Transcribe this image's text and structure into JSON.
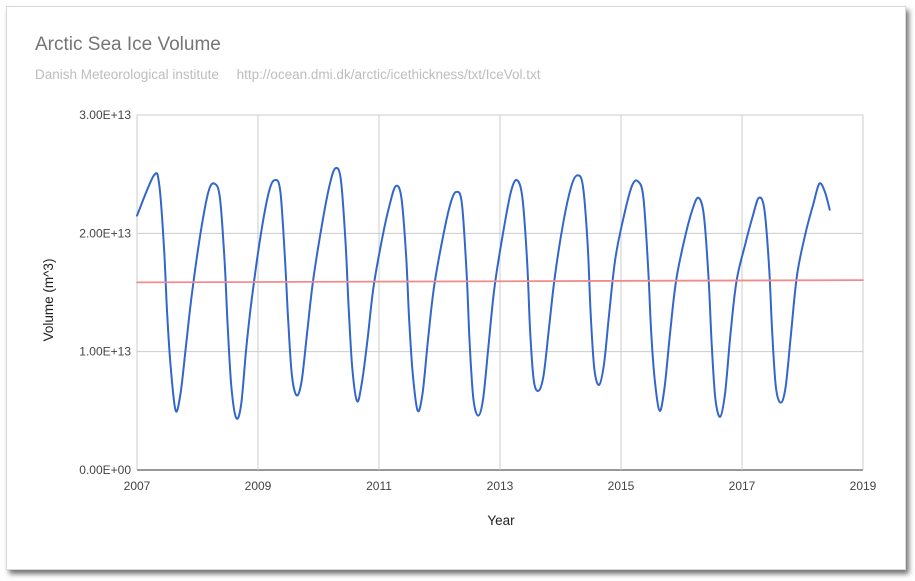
{
  "header": {
    "title": "Arctic Sea Ice Volume",
    "source": "Danish Meteorological institute",
    "url": "http://ocean.dmi.dk/arctic/icethickness/txt/IceVol.txt"
  },
  "chart_data": {
    "type": "line",
    "title": "Arctic Sea Ice Volume",
    "xlabel": "Year",
    "ylabel": "Volume (m^3)",
    "xlim": [
      2007,
      2019
    ],
    "ylim": [
      0,
      30000000000000.0
    ],
    "x_ticks": [
      "2007",
      "2009",
      "2011",
      "2013",
      "2015",
      "2017",
      "2019"
    ],
    "y_ticks": [
      "0.00E+00",
      "1.00E+13",
      "2.00E+13",
      "3.00E+13"
    ],
    "grid": true,
    "legend": "none",
    "series": [
      {
        "color": "#3366cc",
        "x": [
          2007.0,
          2007.28,
          2007.37,
          2007.45,
          2007.5,
          2007.56,
          2007.64,
          2007.72,
          2007.81,
          2007.91,
          2008.05,
          2008.18,
          2008.28,
          2008.37,
          2008.45,
          2008.5,
          2008.56,
          2008.64,
          2008.72,
          2008.81,
          2008.91,
          2009.05,
          2009.18,
          2009.28,
          2009.37,
          2009.45,
          2009.5,
          2009.56,
          2009.64,
          2009.72,
          2009.81,
          2009.91,
          2010.05,
          2010.18,
          2010.28,
          2010.37,
          2010.45,
          2010.5,
          2010.56,
          2010.64,
          2010.72,
          2010.81,
          2010.91,
          2011.05,
          2011.18,
          2011.28,
          2011.37,
          2011.45,
          2011.5,
          2011.56,
          2011.64,
          2011.72,
          2011.81,
          2011.91,
          2012.05,
          2012.18,
          2012.28,
          2012.37,
          2012.45,
          2012.5,
          2012.56,
          2012.64,
          2012.72,
          2012.81,
          2012.91,
          2013.05,
          2013.18,
          2013.28,
          2013.37,
          2013.45,
          2013.5,
          2013.56,
          2013.64,
          2013.72,
          2013.81,
          2013.91,
          2014.05,
          2014.18,
          2014.28,
          2014.37,
          2014.45,
          2014.5,
          2014.56,
          2014.64,
          2014.72,
          2014.81,
          2014.91,
          2015.05,
          2015.18,
          2015.28,
          2015.37,
          2015.45,
          2015.5,
          2015.56,
          2015.64,
          2015.72,
          2015.81,
          2015.91,
          2016.05,
          2016.18,
          2016.28,
          2016.37,
          2016.45,
          2016.5,
          2016.56,
          2016.64,
          2016.72,
          2016.81,
          2016.91,
          2017.05,
          2017.18,
          2017.28,
          2017.37,
          2017.45,
          2017.5,
          2017.56,
          2017.64,
          2017.72,
          2017.81,
          2017.91,
          2018.05,
          2018.18,
          2018.28,
          2018.37,
          2018.45
        ],
        "values": [
          21500000000000.0,
          24900000000000.0,
          24000000000000.0,
          18500000000000.0,
          13000000000000.0,
          8500000000000.0,
          5000000000000.0,
          6500000000000.0,
          10500000000000.0,
          15000000000000.0,
          20000000000000.0,
          23500000000000.0,
          24200000000000.0,
          23000000000000.0,
          17500000000000.0,
          12000000000000.0,
          7000000000000.0,
          4400000000000.0,
          5500000000000.0,
          10500000000000.0,
          15000000000000.0,
          20000000000000.0,
          23500000000000.0,
          24500000000000.0,
          23500000000000.0,
          17500000000000.0,
          12500000000000.0,
          8000000000000.0,
          6300000000000.0,
          7500000000000.0,
          11500000000000.0,
          16000000000000.0,
          20500000000000.0,
          24000000000000.0,
          25500000000000.0,
          24500000000000.0,
          19000000000000.0,
          13500000000000.0,
          8500000000000.0,
          5800000000000.0,
          7500000000000.0,
          11000000000000.0,
          15500000000000.0,
          19500000000000.0,
          22500000000000.0,
          24000000000000.0,
          23000000000000.0,
          18000000000000.0,
          12500000000000.0,
          8000000000000.0,
          5000000000000.0,
          6500000000000.0,
          11000000000000.0,
          15500000000000.0,
          19500000000000.0,
          22500000000000.0,
          23500000000000.0,
          22500000000000.0,
          16500000000000.0,
          10500000000000.0,
          6000000000000.0,
          4600000000000.0,
          6000000000000.0,
          10500000000000.0,
          15500000000000.0,
          20000000000000.0,
          23500000000000.0,
          24500000000000.0,
          23000000000000.0,
          17500000000000.0,
          11500000000000.0,
          7500000000000.0,
          6700000000000.0,
          8000000000000.0,
          12000000000000.0,
          16500000000000.0,
          21000000000000.0,
          24000000000000.0,
          24900000000000.0,
          24000000000000.0,
          19000000000000.0,
          13000000000000.0,
          8500000000000.0,
          7200000000000.0,
          9000000000000.0,
          13500000000000.0,
          18000000000000.0,
          21500000000000.0,
          24000000000000.0,
          24400000000000.0,
          23000000000000.0,
          17000000000000.0,
          11500000000000.0,
          7500000000000.0,
          5000000000000.0,
          7000000000000.0,
          11500000000000.0,
          16000000000000.0,
          19500000000000.0,
          22000000000000.0,
          23000000000000.0,
          21500000000000.0,
          16000000000000.0,
          10500000000000.0,
          6000000000000.0,
          4500000000000.0,
          6500000000000.0,
          11500000000000.0,
          16000000000000.0,
          19000000000000.0,
          21500000000000.0,
          23000000000000.0,
          22000000000000.0,
          17000000000000.0,
          11500000000000.0,
          7000000000000.0,
          5700000000000.0,
          7000000000000.0,
          11500000000000.0,
          16500000000000.0,
          20000000000000.0,
          22500000000000.0,
          24200000000000.0,
          23500000000000.0,
          22000000000000.0
        ]
      },
      {
        "color": "#f08c8c",
        "x": [
          2007.0,
          2019.0
        ],
        "values": [
          15850000000000.0,
          16050000000000.0
        ]
      }
    ]
  }
}
